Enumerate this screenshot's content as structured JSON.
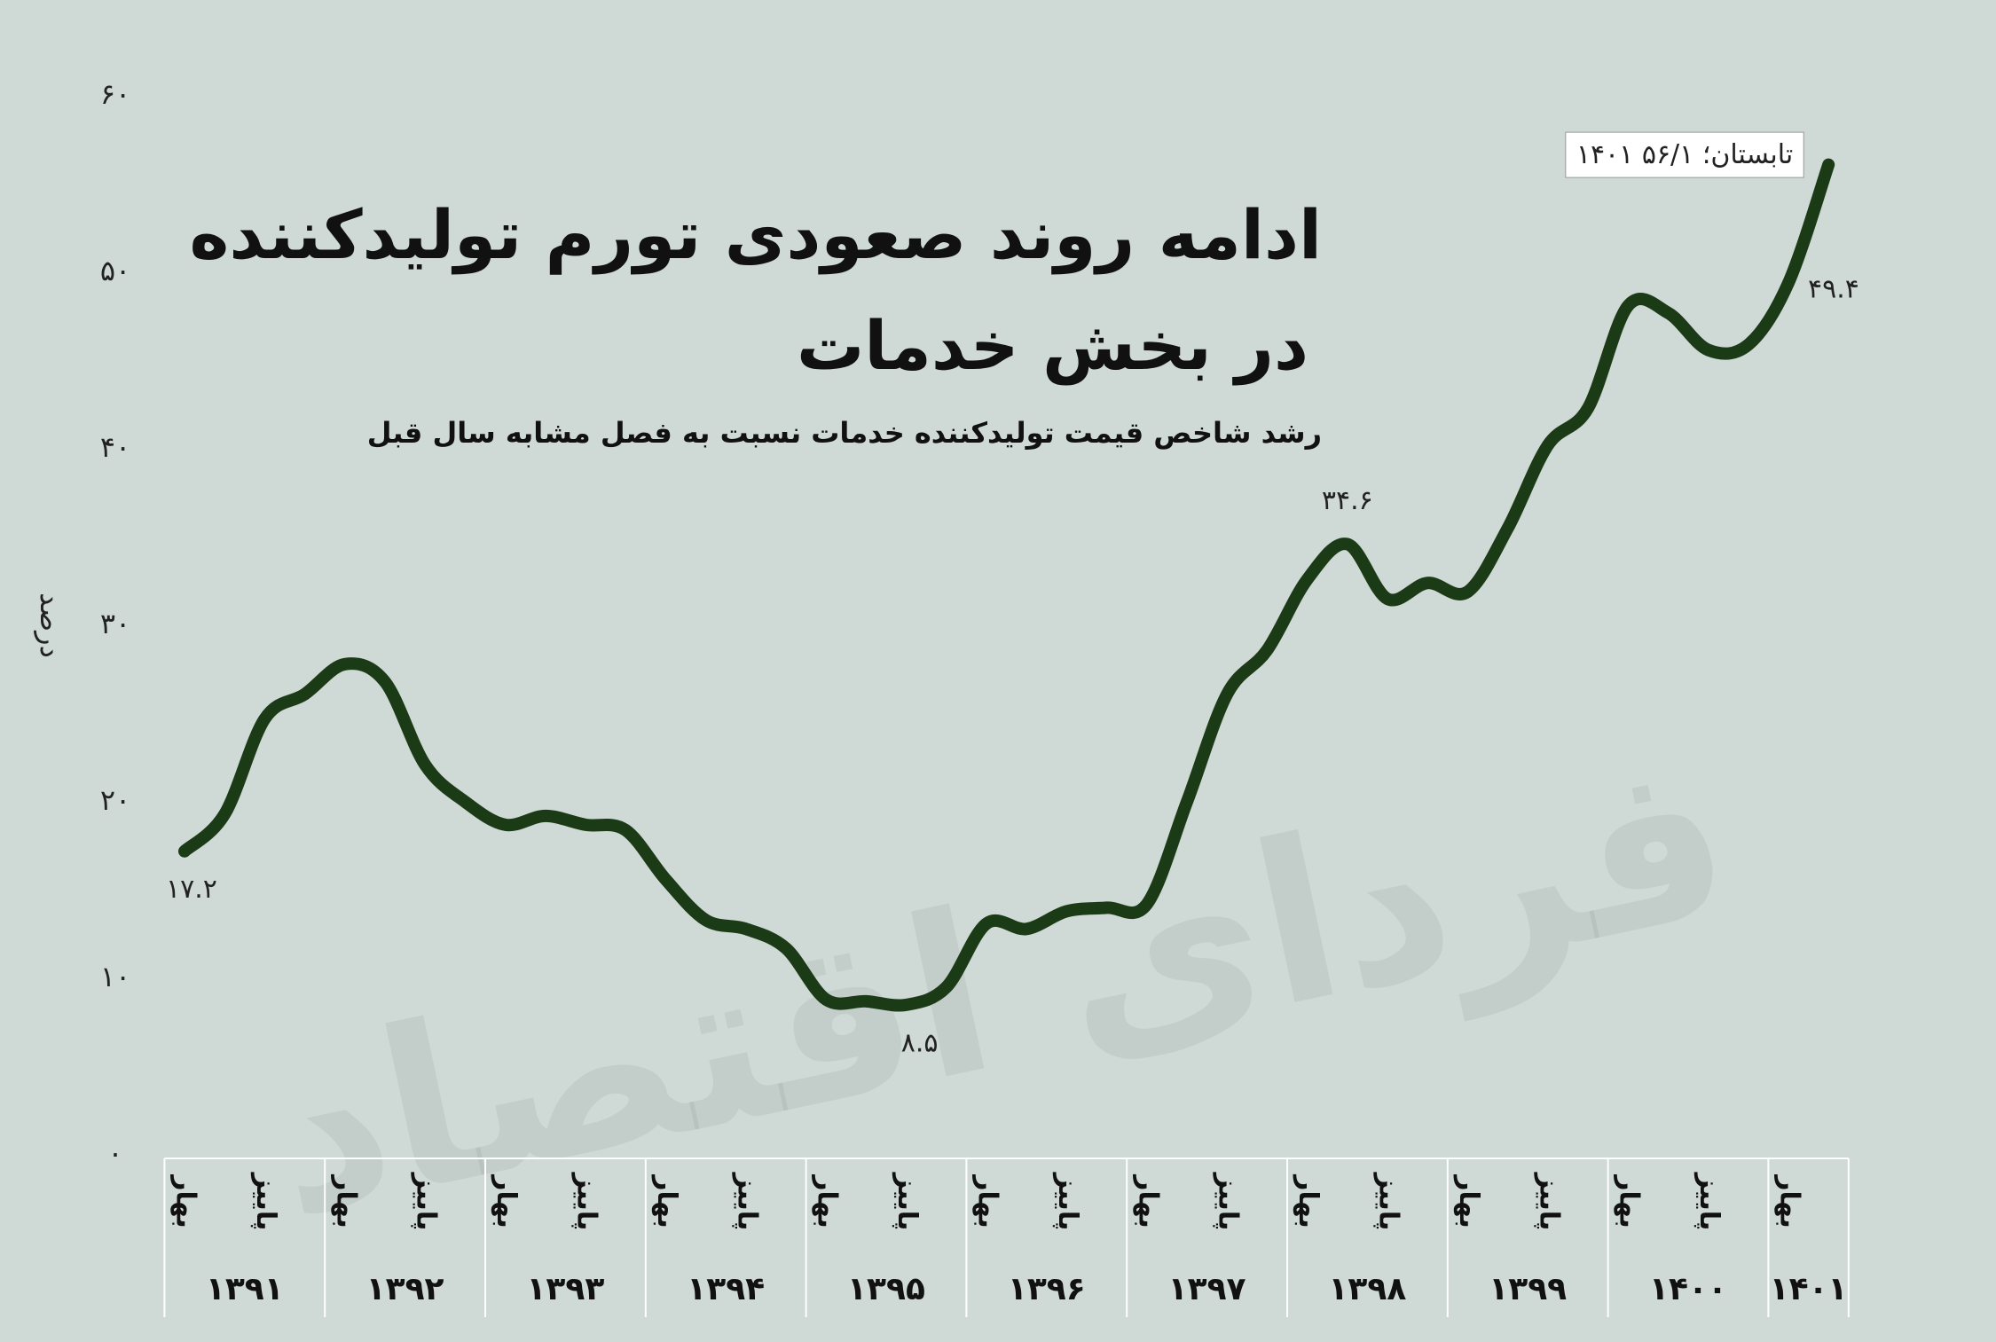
{
  "chart_data": {
    "type": "line",
    "title": [
      "ادامه روند صعودی تورم تولیدکننده",
      "در بخش خدمات"
    ],
    "subtitle": "رشد شاخص قیمت تولیدکننده خدمات نسبت به فصل مشابه سال قبل",
    "y_label": "درصد",
    "watermark": "فردای اقتصاد",
    "categories": [
      "بهار",
      null,
      "پاییز",
      null,
      "بهار",
      null,
      "پاییز",
      null,
      "بهار",
      null,
      "پاییز",
      null,
      "بهار",
      null,
      "پاییز",
      null,
      "بهار",
      null,
      "پاییز",
      null,
      "بهار",
      null,
      "پاییز",
      null,
      "بهار",
      null,
      "پاییز",
      null,
      "بهار",
      null,
      "پاییز",
      null,
      "بهار",
      null,
      "پاییز",
      null,
      "بهار",
      null,
      "پاییز",
      null,
      "بهار",
      null
    ],
    "x_groups": [
      "۱۳۹۱",
      "۱۳۹۲",
      "۱۳۹۳",
      "۱۳۹۴",
      "۱۳۹۵",
      "۱۳۹۶",
      "۱۳۹۷",
      "۱۳۹۸",
      "۱۳۹۹",
      "۱۴۰۰",
      "۱۴۰۱"
    ],
    "series": [
      {
        "name": null,
        "color": "#1b3a16",
        "values": [
          17.2,
          19.3,
          24.7,
          26.1,
          27.8,
          26.8,
          22.1,
          20.0,
          18.7,
          19.2,
          18.7,
          18.4,
          15.6,
          13.3,
          12.8,
          11.7,
          8.8,
          8.7,
          8.5,
          9.5,
          13.1,
          12.8,
          13.8,
          14.0,
          14.2,
          20.0,
          26.1,
          28.6,
          32.6,
          34.6,
          31.5,
          32.4,
          31.9,
          35.5,
          40.2,
          42.3,
          48.1,
          47.7,
          45.6,
          45.9,
          49.4,
          56.1
        ],
        "value_labels": [
          "۱۷.۲",
          null,
          null,
          null,
          null,
          null,
          null,
          null,
          null,
          null,
          null,
          null,
          null,
          null,
          null,
          null,
          null,
          null,
          "۸.۵",
          null,
          null,
          null,
          null,
          null,
          null,
          null,
          null,
          null,
          null,
          "۳۴.۶",
          null,
          null,
          null,
          null,
          null,
          null,
          null,
          null,
          null,
          null,
          "۴۹.۴",
          "۱۴۰۱ تابستان؛ ۵۶/۱"
        ]
      }
    ],
    "ylim": [
      0,
      60
    ],
    "yticks": [
      {
        "value": 0,
        "label": "۰"
      },
      {
        "value": 10,
        "label": "۱۰"
      },
      {
        "value": 20,
        "label": "۲۰"
      },
      {
        "value": 30,
        "label": "۳۰"
      },
      {
        "value": 40,
        "label": "۴۰"
      },
      {
        "value": 50,
        "label": "۵۰"
      },
      {
        "value": 60,
        "label": "۶۰"
      }
    ],
    "grid": false
  }
}
